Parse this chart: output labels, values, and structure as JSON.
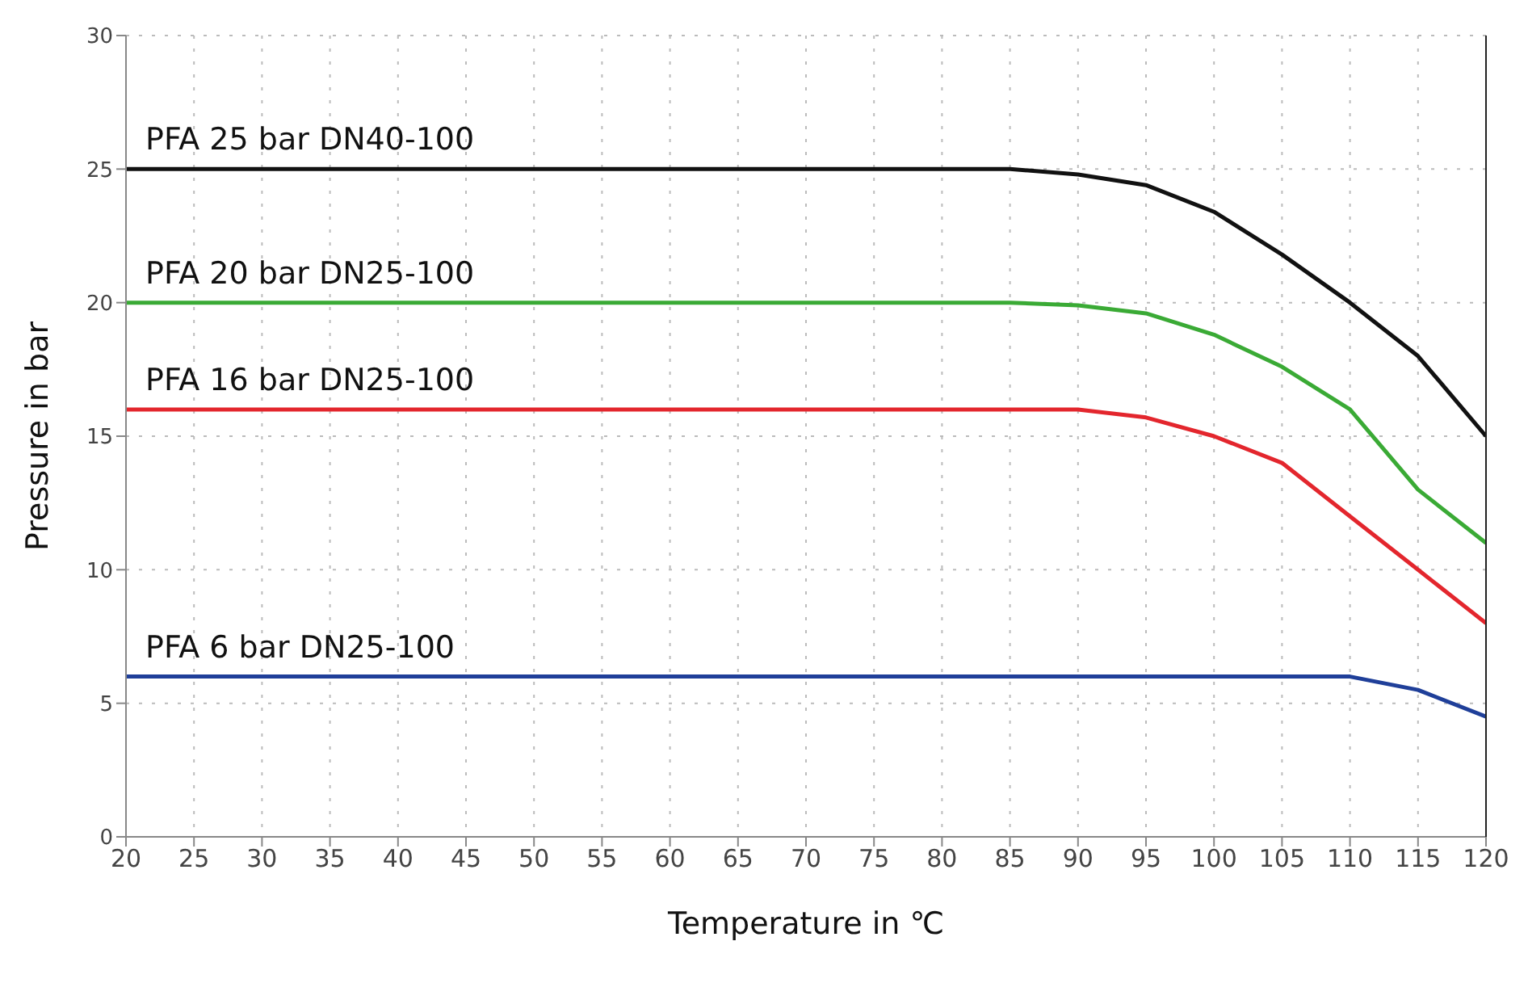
{
  "chart_data": {
    "type": "line",
    "xlabel": "Temperature in  ℃",
    "ylabel": "Pressure in bar",
    "x": [
      20,
      25,
      30,
      35,
      40,
      45,
      50,
      55,
      60,
      65,
      70,
      75,
      80,
      85,
      90,
      95,
      100,
      105,
      110,
      115,
      120
    ],
    "series": [
      {
        "name": "PFA 25 bar DN40-100",
        "color": "#111111",
        "values": [
          25,
          25,
          25,
          25,
          25,
          25,
          25,
          25,
          25,
          25,
          25,
          25,
          25,
          25,
          24.8,
          24.4,
          23.4,
          21.8,
          20,
          18,
          15
        ]
      },
      {
        "name": "PFA 20 bar DN25-100",
        "color": "#3aaa35",
        "values": [
          20,
          20,
          20,
          20,
          20,
          20,
          20,
          20,
          20,
          20,
          20,
          20,
          20,
          20,
          19.9,
          19.6,
          18.8,
          17.6,
          16,
          13,
          11
        ]
      },
      {
        "name": "PFA 16 bar DN25-100",
        "color": "#e3262d",
        "values": [
          16,
          16,
          16,
          16,
          16,
          16,
          16,
          16,
          16,
          16,
          16,
          16,
          16,
          16,
          16,
          15.7,
          15,
          14,
          12,
          10,
          8
        ]
      },
      {
        "name": "PFA 6 bar DN25-100",
        "color": "#1f3f99",
        "values": [
          6,
          6,
          6,
          6,
          6,
          6,
          6,
          6,
          6,
          6,
          6,
          6,
          6,
          6,
          6,
          6,
          6,
          6,
          6,
          5.5,
          4.5
        ]
      }
    ],
    "xlim": [
      20,
      120
    ],
    "xticks": [
      20,
      25,
      30,
      35,
      40,
      45,
      50,
      55,
      60,
      65,
      70,
      75,
      80,
      85,
      90,
      95,
      100,
      105,
      110,
      115,
      120
    ],
    "ylim": [
      0,
      30
    ],
    "yticks": [
      0,
      5,
      10,
      15,
      20,
      25,
      30
    ],
    "grid": true,
    "legend": false,
    "marker": "none",
    "line_style": "solid"
  }
}
